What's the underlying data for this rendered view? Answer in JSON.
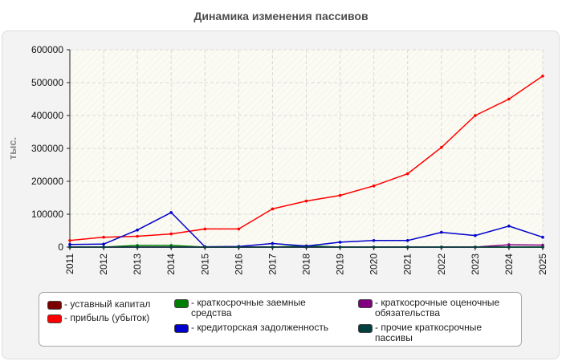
{
  "chart_data": {
    "type": "line",
    "title": "Динамика изменения пассивов",
    "ylabel": "тыс.",
    "xlabel": "",
    "ylim": [
      0,
      600000
    ],
    "y_ticks": [
      "0",
      "100000",
      "200000",
      "300000",
      "400000",
      "500000",
      "600000"
    ],
    "y_tick_values": [
      0,
      100000,
      200000,
      300000,
      400000,
      500000,
      600000
    ],
    "categories": [
      "2011",
      "2012",
      "2013",
      "2014",
      "2015",
      "2016",
      "2017",
      "2018",
      "2019",
      "2020",
      "2021",
      "2022",
      "2023",
      "2024",
      "2025"
    ],
    "grid": true,
    "legend_position": "bottom",
    "series": [
      {
        "name": "уставный капитал",
        "color": "#7a0000",
        "values": [
          0,
          0,
          0,
          0,
          0,
          0,
          0,
          0,
          0,
          0,
          0,
          0,
          0,
          0,
          0
        ]
      },
      {
        "name": "прибыль (убыток)",
        "color": "#ff0000",
        "values": [
          20000,
          30000,
          33000,
          40000,
          55000,
          55000,
          116000,
          140000,
          157000,
          186000,
          223000,
          303000,
          400000,
          450000,
          520000
        ]
      },
      {
        "name": "краткосрочные заемные средства",
        "color": "#008000",
        "values": [
          0,
          0,
          5000,
          5000,
          0,
          0,
          0,
          4000,
          0,
          0,
          0,
          0,
          0,
          0,
          0
        ]
      },
      {
        "name": "кредиторская задолженность",
        "color": "#0000cc",
        "values": [
          8000,
          9000,
          52000,
          105000,
          1000,
          2000,
          11000,
          3000,
          15000,
          20000,
          20000,
          45000,
          35000,
          64000,
          30000
        ]
      },
      {
        "name": "краткосрочные оценочные обязательства",
        "color": "#800080",
        "values": [
          0,
          0,
          0,
          0,
          0,
          0,
          0,
          0,
          0,
          0,
          0,
          0,
          0,
          7000,
          6000
        ]
      },
      {
        "name": "прочие краткосрочные пассивы",
        "color": "#004040",
        "values": [
          0,
          0,
          0,
          0,
          0,
          0,
          0,
          0,
          0,
          0,
          0,
          0,
          0,
          0,
          0
        ]
      }
    ]
  }
}
